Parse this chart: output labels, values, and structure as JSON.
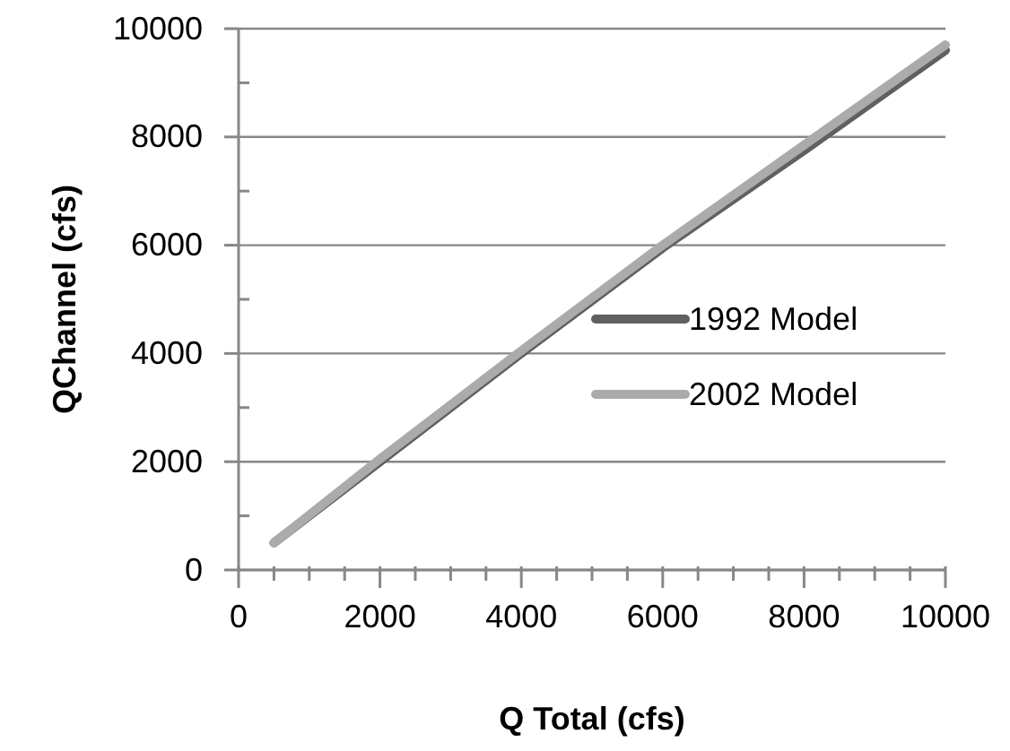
{
  "chart_data": {
    "type": "line",
    "xlabel": "Q Total (cfs)",
    "ylabel": "QChannel (cfs)",
    "x": [
      500,
      2000,
      4000,
      6000,
      8000,
      10000
    ],
    "series": [
      {
        "name": "1992 Model",
        "color": "#606060",
        "values": [
          500,
          2000,
          4000,
          5950,
          7750,
          9600
        ]
      },
      {
        "name": "2002 Model",
        "color": "#ababab",
        "values": [
          500,
          2050,
          4050,
          6000,
          7850,
          9700
        ]
      }
    ],
    "xlim": [
      0,
      10000
    ],
    "ylim": [
      0,
      10000
    ],
    "xticks": [
      0,
      {
        "value": 500,
        "label": null
      },
      {
        "value": 1000,
        "label": null
      },
      {
        "value": 1500,
        "label": null
      },
      2000,
      {
        "value": 2500,
        "label": null
      },
      {
        "value": 3000,
        "label": null
      },
      {
        "value": 3500,
        "label": null
      },
      4000,
      {
        "value": 4500,
        "label": null
      },
      {
        "value": 5000,
        "label": null
      },
      {
        "value": 5500,
        "label": null
      },
      6000,
      {
        "value": 6500,
        "label": null
      },
      {
        "value": 7000,
        "label": null
      },
      {
        "value": 7500,
        "label": null
      },
      8000,
      {
        "value": 8500,
        "label": null
      },
      {
        "value": 9000,
        "label": null
      },
      {
        "value": 9500,
        "label": null
      },
      10000
    ],
    "yticks": [
      0,
      {
        "value": 1000,
        "label": null
      },
      2000,
      {
        "value": 3000,
        "label": null
      },
      4000,
      {
        "value": 5000,
        "label": null
      },
      6000,
      {
        "value": 7000,
        "label": null
      },
      8000,
      {
        "value": 9000,
        "label": null
      },
      10000
    ],
    "grid": "y",
    "legend": "right",
    "marker": "none",
    "line_style": "solid"
  }
}
